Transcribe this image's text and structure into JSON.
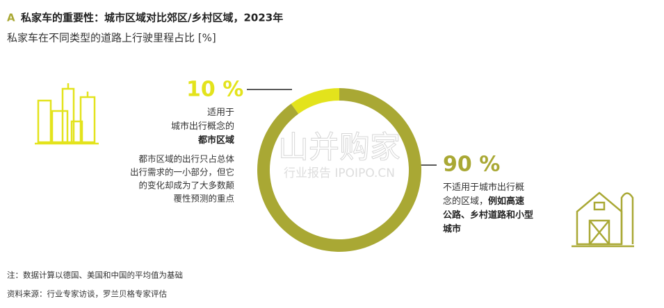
{
  "chart_data": {
    "type": "donut",
    "label": "A",
    "title": "私家车的重要性：城市区域对比郊区/乡村区域，2023年",
    "subtitle": "私家车在不同类型的道路上行驶里程占比 [%]",
    "values": [
      10,
      90
    ],
    "value_labels": [
      "10 %",
      "90 %"
    ],
    "colors": [
      "#e3e31c",
      "#a9a834"
    ],
    "descriptions": [
      {
        "lines": [
          {
            "normal": "适用于"
          },
          {
            "normal": "城市出行概念的"
          },
          {
            "bold": "都市区域"
          }
        ],
        "note_lines": [
          "都市区域的出行只占总体",
          "出行需求的一小部分，但它",
          "的变化却成为了大多数颠",
          "覆性预测的重点"
        ]
      },
      {
        "lines": [
          {
            "normal": "不适用于城市出行概"
          },
          {
            "normal": "念的区域，",
            "bold": "例如高速"
          },
          {
            "bold": "公路、乡村道路和小型"
          },
          {
            "bold": "城市"
          }
        ]
      }
    ],
    "watermark": [
      "山并购家",
      "行业报告 IPOIPO.CN"
    ],
    "note": "注：数据计算以德国、美国和中国的平均值为基础",
    "source": "资料来源：行业专家访谈，罗兰贝格专家评估"
  }
}
